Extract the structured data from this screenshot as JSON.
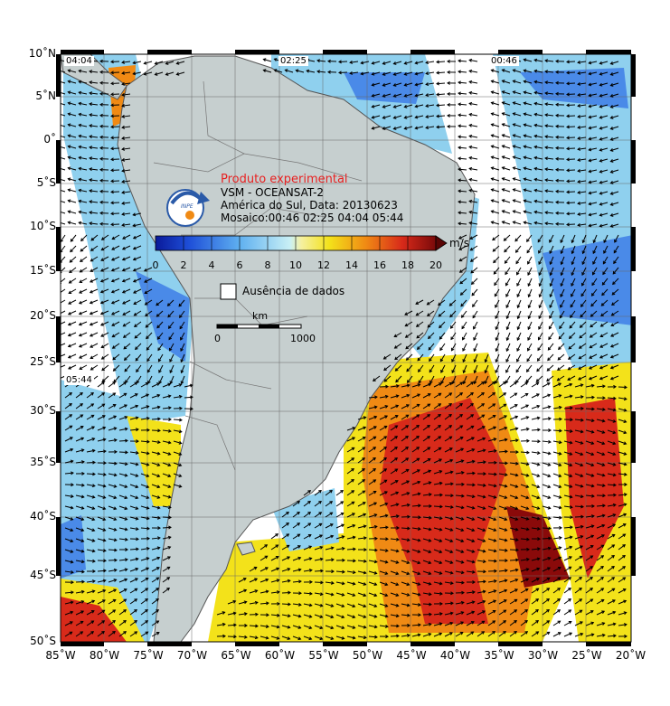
{
  "legend": {
    "title": "Produto experimental",
    "product": "VSM - OCEANSAT-2",
    "region_date": "América do Sul, Data: 20130623",
    "mosaic": "Mosaico:00:46 02:25 04:04 05:44",
    "logo_text": "INPE",
    "unit": "m/s",
    "ticks": [
      "0",
      "2",
      "4",
      "6",
      "8",
      "10",
      "12",
      "14",
      "16",
      "18",
      "20"
    ],
    "missing_label": "Ausência de dados",
    "scale_label": "km",
    "scale_min": "0",
    "scale_max": "1000"
  },
  "pass_times": {
    "p1": "04:04",
    "p2": "02:25",
    "p3": "00:46",
    "p4": "05:44"
  },
  "axes": {
    "lat_labels": [
      "10˚N",
      "5˚N",
      "0˚",
      "5˚S",
      "10˚S",
      "15˚S",
      "20˚S",
      "25˚S",
      "30˚S",
      "35˚S",
      "40˚S",
      "45˚S",
      "50˚S"
    ],
    "lon_labels": [
      "85˚W",
      "80˚W",
      "75˚W",
      "70˚W",
      "65˚W",
      "60˚W",
      "55˚W",
      "50˚W",
      "45˚W",
      "40˚W",
      "35˚W",
      "30˚W",
      "25˚W",
      "20˚W"
    ]
  },
  "colors": {
    "land": "#c6cfcf",
    "border": "#555555",
    "blue": "#2d6fe0",
    "lightblue": "#9ed8f0",
    "yellow": "#f3e21a",
    "orange": "#f08a14",
    "red": "#d82a1a",
    "title_red": "#e82020"
  }
}
